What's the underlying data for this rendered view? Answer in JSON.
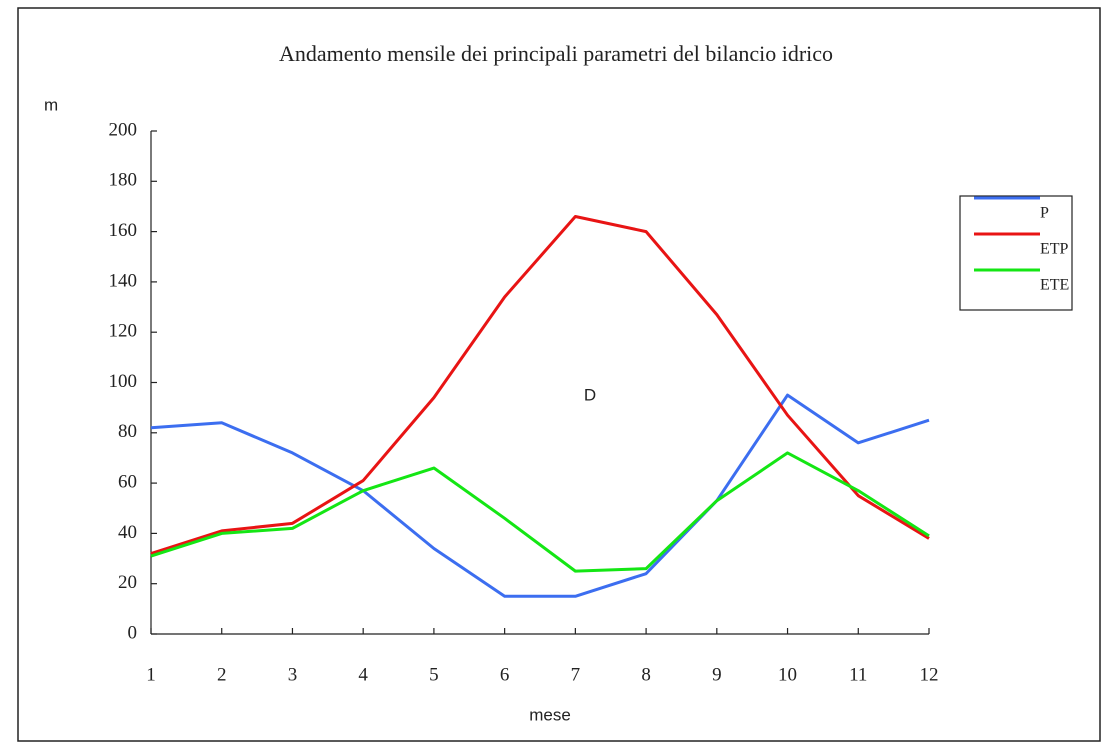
{
  "chart_data": {
    "type": "line",
    "title": "Andamento mensile dei principali parametri del bilancio idrico",
    "y_label": "m",
    "x_label": "mese",
    "annotation": "D",
    "x": [
      1,
      2,
      3,
      4,
      5,
      6,
      7,
      8,
      9,
      10,
      11,
      12
    ],
    "xlim": [
      1,
      12
    ],
    "xticks": [
      1,
      2,
      3,
      4,
      5,
      6,
      7,
      8,
      9,
      10,
      11,
      12
    ],
    "ylim": [
      0,
      200
    ],
    "yticks": [
      0,
      20,
      40,
      60,
      80,
      100,
      120,
      140,
      160,
      180,
      200
    ],
    "grid": false,
    "legend": "right",
    "series": [
      {
        "name": "P",
        "color": "#3c6ef0",
        "values": [
          82,
          84,
          72,
          57,
          34,
          15,
          15,
          24,
          53,
          95,
          76,
          85
        ]
      },
      {
        "name": "ETP",
        "color": "#e81414",
        "values": [
          32,
          41,
          44,
          61,
          94,
          134,
          166,
          160,
          127,
          87,
          55,
          38
        ]
      },
      {
        "name": "ETE",
        "color": "#14e614",
        "values": [
          31,
          40,
          42,
          57,
          66,
          46,
          25,
          26,
          53,
          72,
          57,
          39
        ]
      }
    ]
  }
}
